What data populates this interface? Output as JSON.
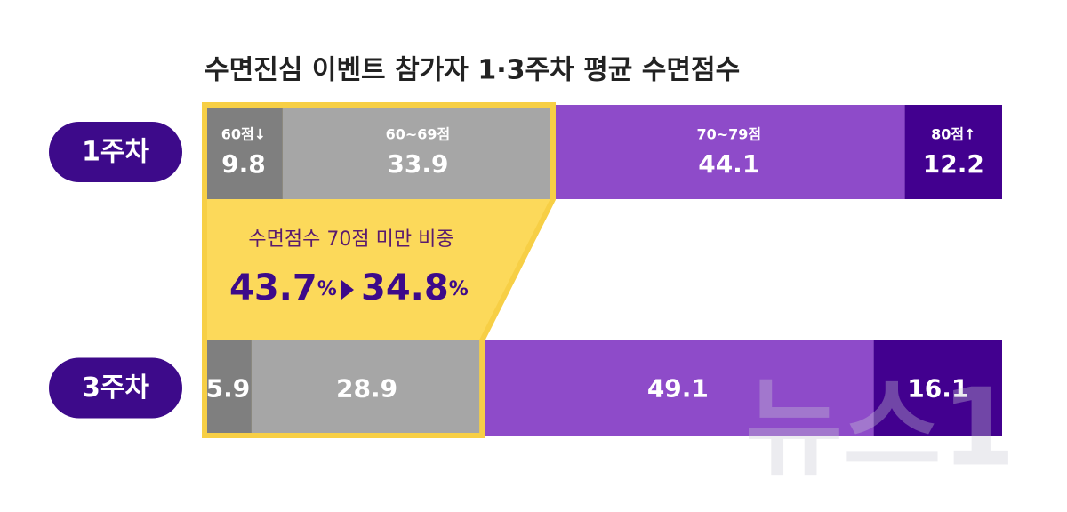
{
  "chart_data": {
    "type": "bar",
    "orientation": "horizontal",
    "stacked": true,
    "title": "수면진심 이벤트 참가자 1·3주차 평균 수면점수",
    "categories": [
      "1주차",
      "3주차"
    ],
    "series": [
      {
        "name": "60점↓",
        "color": "#7f7f7f",
        "values": [
          9.8,
          5.9
        ]
      },
      {
        "name": "60~69점",
        "color": "#a6a6a6",
        "values": [
          33.9,
          28.9
        ]
      },
      {
        "name": "70~79점",
        "color": "#8e4bc9",
        "values": [
          44.1,
          49.1
        ]
      },
      {
        "name": "80점↑",
        "color": "#42008f",
        "values": [
          12.2,
          16.1
        ]
      }
    ],
    "xlim": [
      0,
      100
    ],
    "annotation": {
      "text": "수면점수 70점 미만 비중",
      "values": [
        43.7,
        34.8
      ],
      "unit": "%"
    },
    "watermark": "뉴스1"
  }
}
